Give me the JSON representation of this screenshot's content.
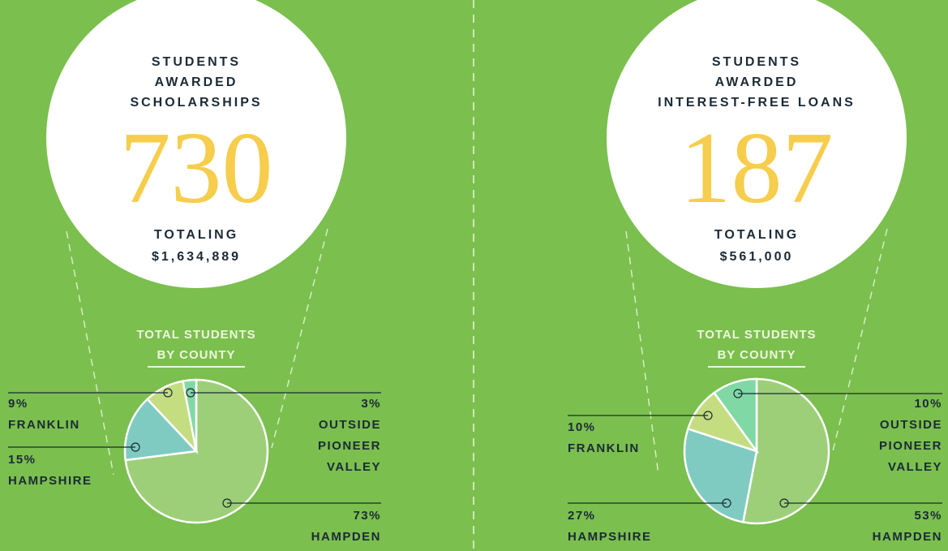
{
  "chart_data": [
    {
      "type": "pie",
      "heading": [
        "STUDENTS",
        "AWARDED",
        "SCHOLARSHIPS"
      ],
      "count": 730,
      "total_caption": "TOTALING",
      "total": "$1,634,889",
      "subtitle": [
        "TOTAL STUDENTS",
        "BY COUNTY"
      ],
      "categories": [
        "HAMPDEN",
        "HAMPSHIRE",
        "FRANKLIN",
        "OUTSIDE PIONEER VALLEY"
      ],
      "values": [
        73,
        15,
        9,
        3
      ],
      "value_labels": [
        "73%",
        "15%",
        "9%",
        "3%"
      ],
      "colors": [
        "#9dcf79",
        "#7fcbc1",
        "#c4dd80",
        "#80d9a4"
      ]
    },
    {
      "type": "pie",
      "heading": [
        "STUDENTS",
        "AWARDED",
        "INTEREST-FREE LOANS"
      ],
      "count": 187,
      "total_caption": "TOTALING",
      "total": "$561,000",
      "subtitle": [
        "TOTAL STUDENTS",
        "BY COUNTY"
      ],
      "categories": [
        "HAMPDEN",
        "HAMPSHIRE",
        "FRANKLIN",
        "OUTSIDE PIONEER VALLEY"
      ],
      "values": [
        53,
        27,
        10,
        10
      ],
      "value_labels": [
        "53%",
        "27%",
        "10%",
        "10%"
      ],
      "colors": [
        "#9dcf79",
        "#7fcbc1",
        "#c4dd80",
        "#80d9a4"
      ]
    }
  ]
}
